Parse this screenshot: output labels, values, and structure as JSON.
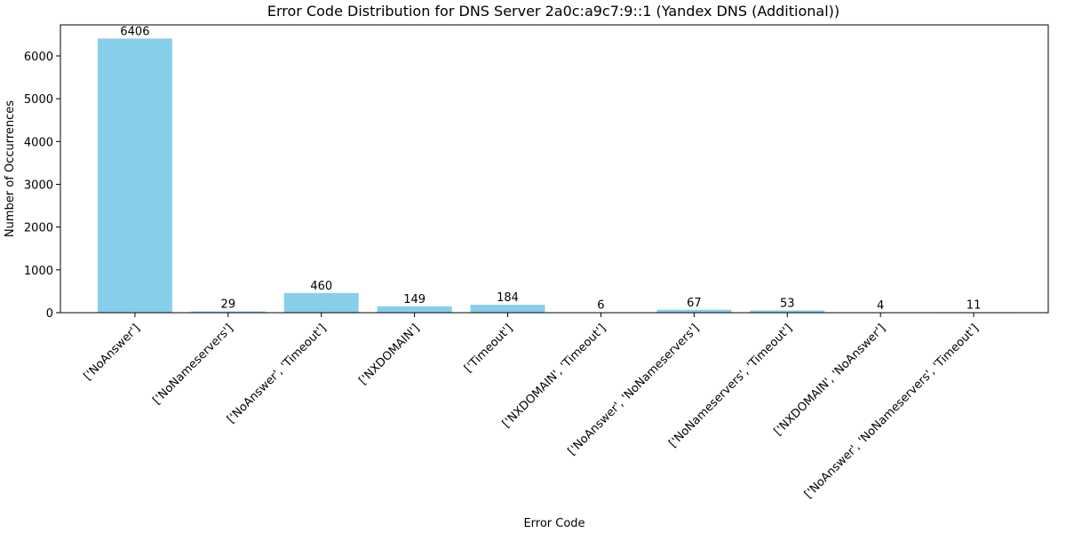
{
  "chart_data": {
    "type": "bar",
    "title": "Error Code Distribution for DNS Server 2a0c:a9c7:9::1 (Yandex DNS (Additional))",
    "xlabel": "Error Code",
    "ylabel": "Number of Occurrences",
    "categories": [
      "['NoAnswer']",
      "['NoNameservers']",
      "['NoAnswer', 'Timeout']",
      "['NXDOMAIN']",
      "['Timeout']",
      "['NXDOMAIN', 'Timeout']",
      "['NoAnswer', 'NoNameservers']",
      "['NoNameservers', 'Timeout']",
      "['NXDOMAIN', 'NoAnswer']",
      "['NoAnswer', 'NoNameservers', 'Timeout']"
    ],
    "values": [
      6406,
      29,
      460,
      149,
      184,
      6,
      67,
      53,
      4,
      11
    ],
    "data_labels": [
      "6406",
      "29",
      "460",
      "149",
      "184",
      "6",
      "67",
      "53",
      "4",
      "11"
    ],
    "yticks": [
      0,
      1000,
      2000,
      3000,
      4000,
      5000,
      6000
    ],
    "ytick_labels": [
      "0",
      "1000",
      "2000",
      "3000",
      "4000",
      "5000",
      "6000"
    ],
    "ylim": [
      0,
      6726
    ],
    "grid": false,
    "bar_color": "#87CEEB"
  }
}
